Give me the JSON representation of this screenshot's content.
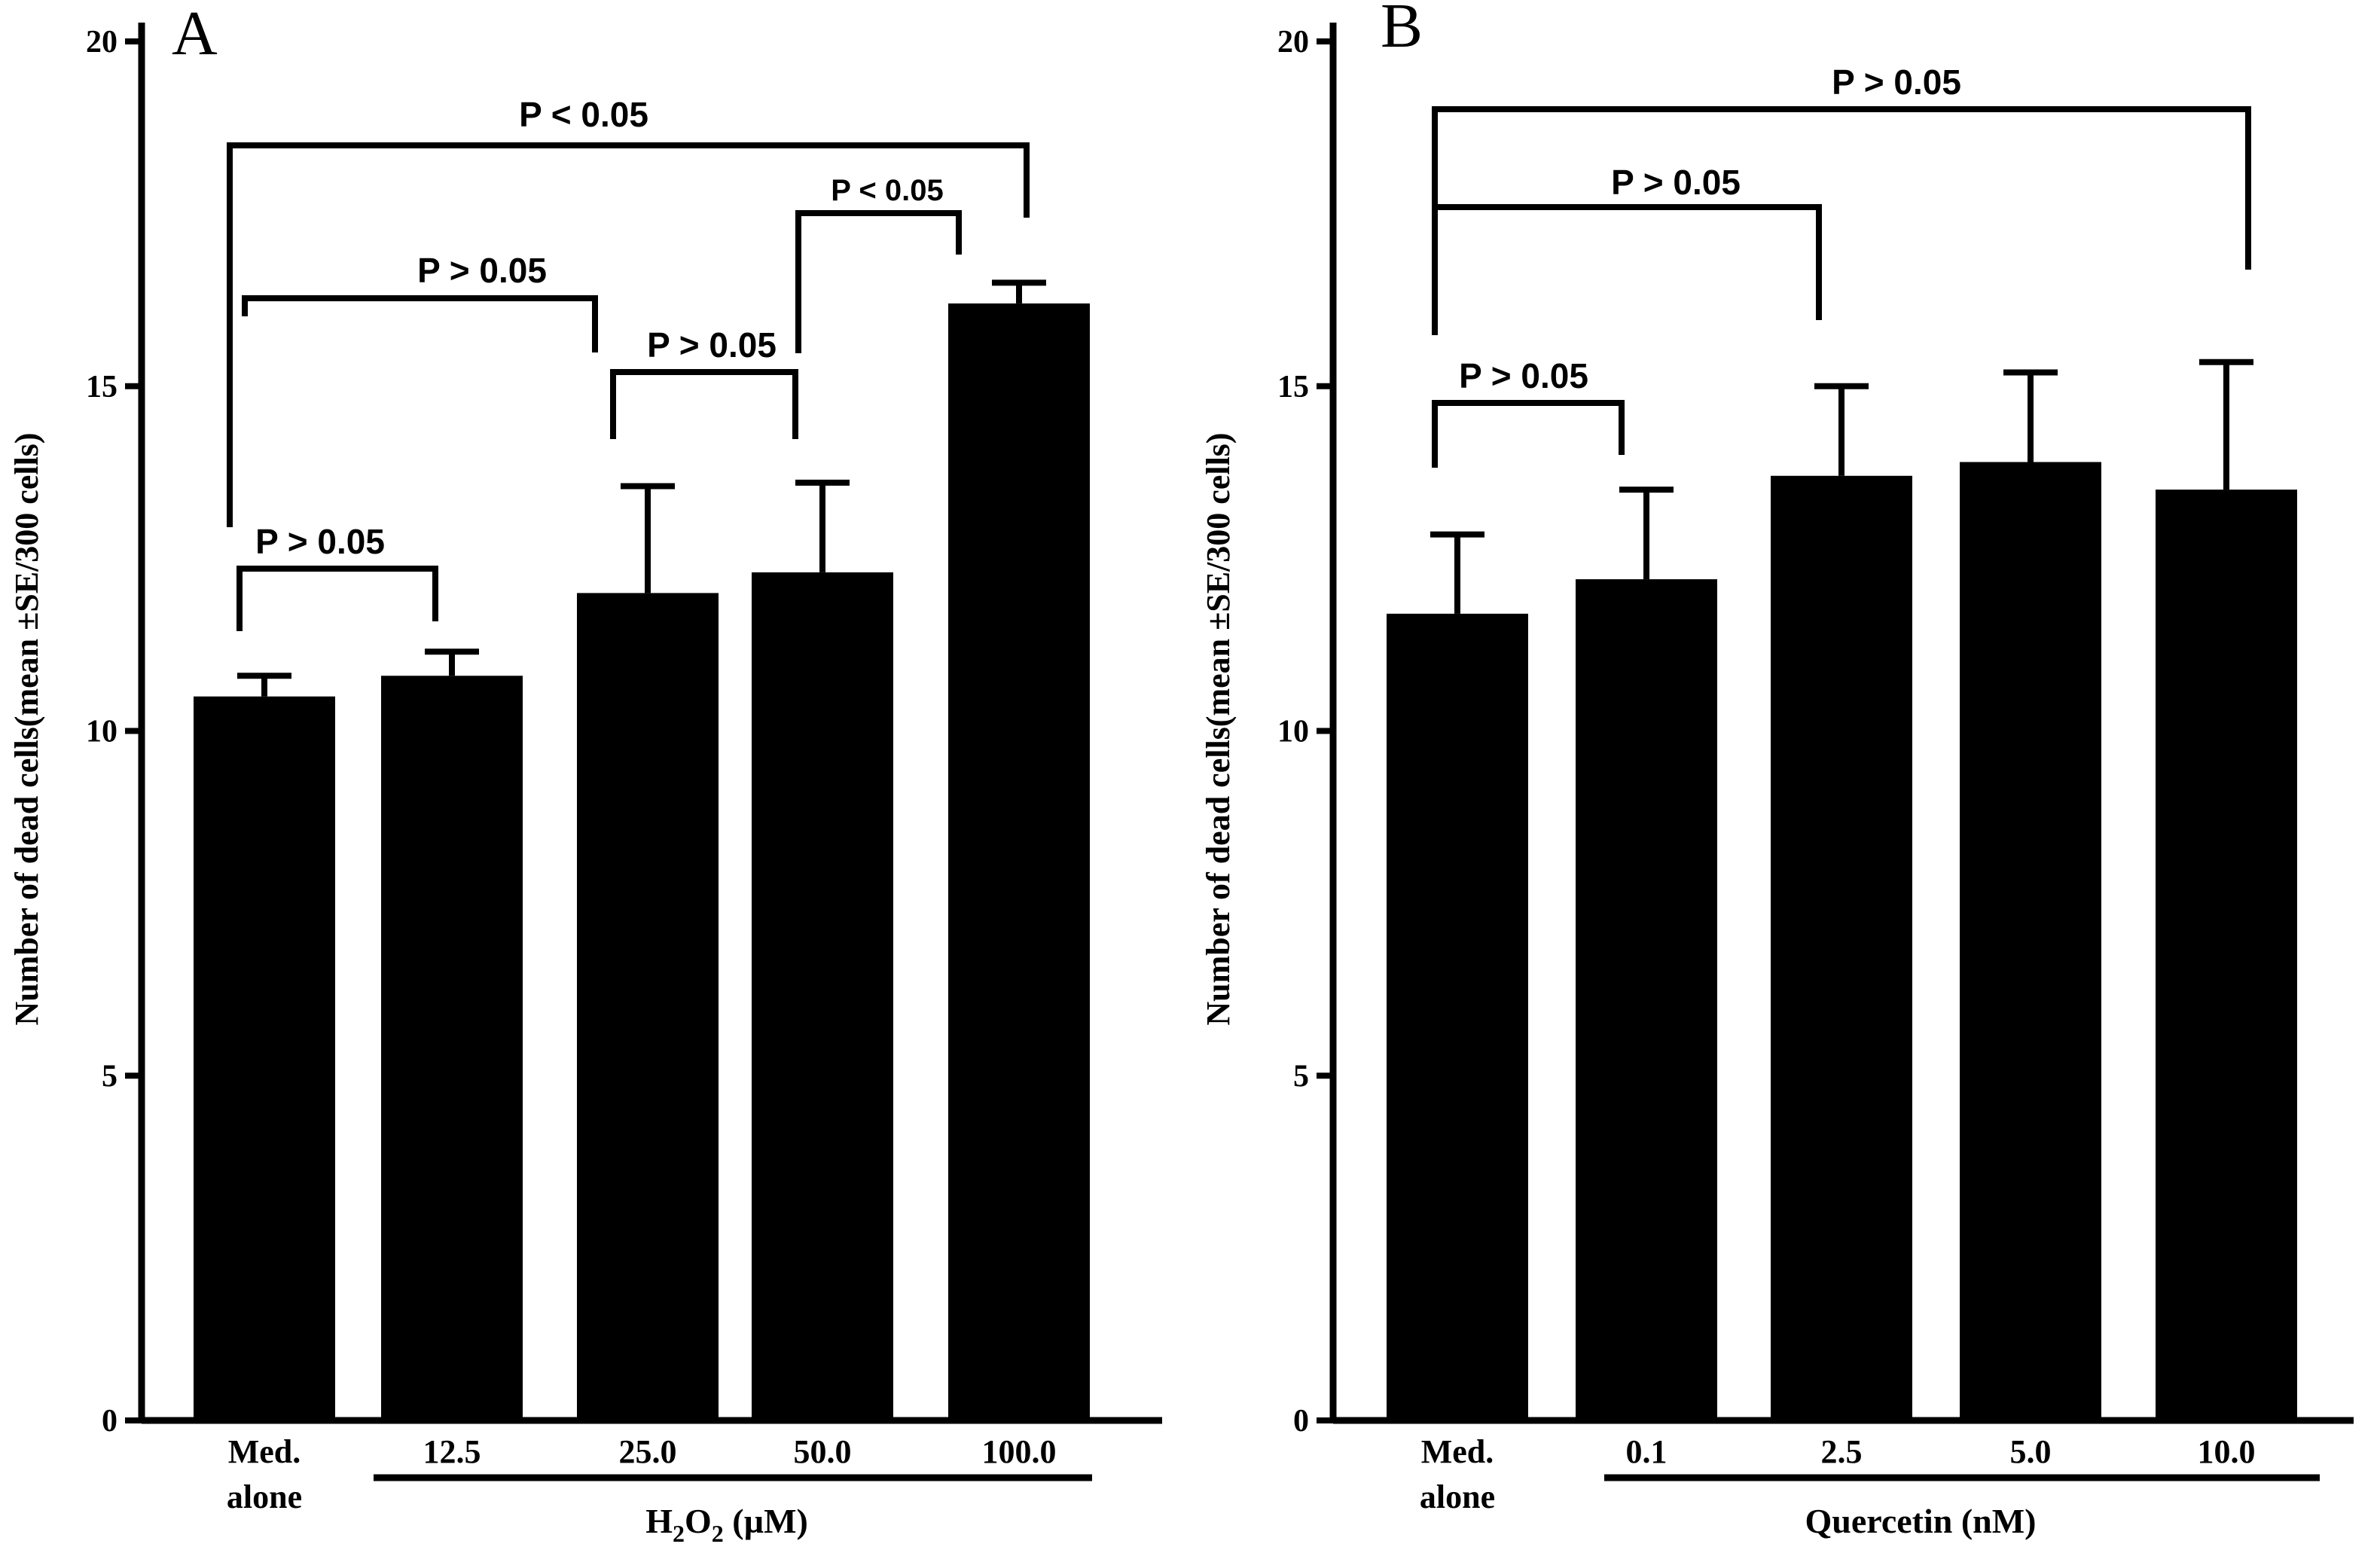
{
  "chart_data": [
    {
      "panel": "A",
      "type": "bar",
      "ylabel": "Number  of dead cells(mean ±SE/300 cells)",
      "ylim": [
        0,
        20
      ],
      "yticks": [
        "0",
        "5",
        "10",
        "15",
        "20"
      ],
      "categories": [
        {
          "line1": "Med.",
          "line2": "alone"
        },
        {
          "line1": "12.5",
          "line2": ""
        },
        {
          "line1": "25.0",
          "line2": ""
        },
        {
          "line1": "50.0",
          "line2": ""
        },
        {
          "line1": "100.0",
          "line2": ""
        }
      ],
      "values": [
        10.5,
        10.8,
        12.0,
        12.3,
        16.2
      ],
      "errors": [
        0.3,
        0.35,
        1.55,
        1.3,
        0.3
      ],
      "group_label": {
        "main": "H",
        "sub1": "2",
        "mid": "O",
        "sub2": "2",
        "unit": " (µM)"
      },
      "comparisons": [
        {
          "label": "P > 0.05",
          "from": 0,
          "to": 1
        },
        {
          "label": "P > 0.05",
          "from": 2,
          "to": 3
        },
        {
          "label": "P < 0.05",
          "from": 3,
          "to": 4
        },
        {
          "label": "P > 0.05",
          "from": 0,
          "to": 2
        },
        {
          "label": "P < 0.05",
          "from": 0,
          "to": 4
        }
      ]
    },
    {
      "panel": "B",
      "type": "bar",
      "ylabel": "Number  of dead cells(mean ±SE/300 cells)",
      "ylim": [
        0,
        20
      ],
      "yticks": [
        "0",
        "5",
        "10",
        "15",
        "20"
      ],
      "categories": [
        {
          "line1": "Med.",
          "line2": "alone"
        },
        {
          "line1": "0.1",
          "line2": ""
        },
        {
          "line1": "2.5",
          "line2": ""
        },
        {
          "line1": "5.0",
          "line2": ""
        },
        {
          "line1": "10.0",
          "line2": ""
        }
      ],
      "values": [
        11.7,
        12.2,
        13.7,
        13.9,
        13.5
      ],
      "errors": [
        1.15,
        1.3,
        1.3,
        1.3,
        1.85
      ],
      "group_label": {
        "main": "Quercetin (nM)"
      },
      "comparisons": [
        {
          "label": "P > 0.05",
          "from": 0,
          "to": 1
        },
        {
          "label": "P > 0.05",
          "from": 0,
          "to": 2
        },
        {
          "label": "P > 0.05",
          "from": 0,
          "to": 4
        }
      ]
    }
  ]
}
